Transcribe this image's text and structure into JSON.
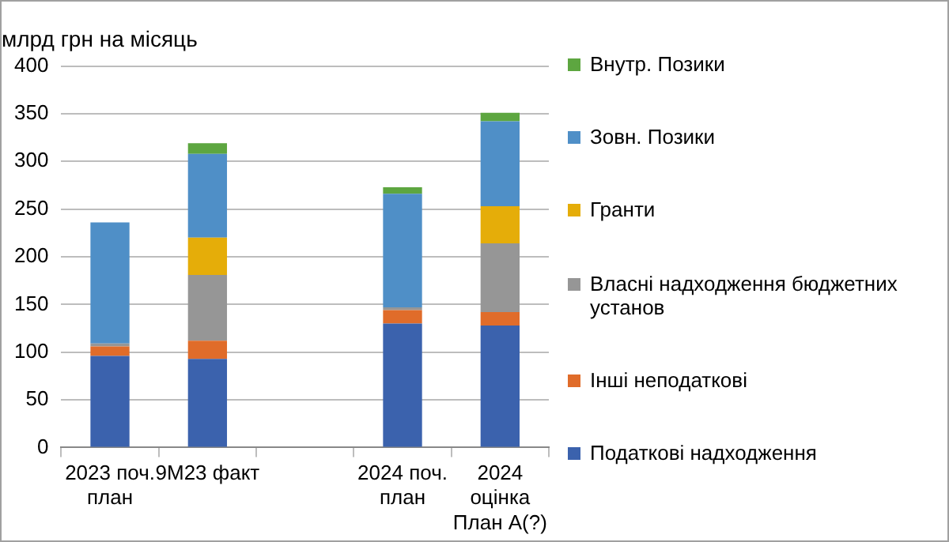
{
  "chart_data": {
    "type": "bar",
    "title": "млрд грн на місяць",
    "stacked": true,
    "legend": "right",
    "grid": "y",
    "categories": [
      "2023 поч. план",
      "9M23 факт",
      null,
      "2024 поч. план",
      "2024 оцінка План А(?)"
    ],
    "ylim": [
      0,
      400
    ],
    "yticks": [
      0,
      50,
      100,
      150,
      200,
      250,
      300,
      350,
      400
    ],
    "series": [
      {
        "name": "Податкові надходження",
        "color": "#3b62ad",
        "values": [
          96,
          93,
          null,
          130,
          128
        ]
      },
      {
        "name": "Інші неподаткові",
        "color": "#e06c2a",
        "values": [
          10,
          19,
          null,
          14,
          14
        ]
      },
      {
        "name": "Власні надходження бюджетних установ",
        "color": "#969696",
        "values": [
          3,
          69,
          null,
          3,
          72
        ]
      },
      {
        "name": "Гранти",
        "color": "#e5ad09",
        "values": [
          0,
          39,
          null,
          0,
          39
        ]
      },
      {
        "name": "Зовн. Позики",
        "color": "#4f8fc7",
        "values": [
          127,
          88,
          null,
          119,
          89
        ]
      },
      {
        "name": "Внутр. Позики",
        "color": "#5da640",
        "values": [
          null,
          11,
          null,
          7,
          9
        ]
      }
    ]
  }
}
